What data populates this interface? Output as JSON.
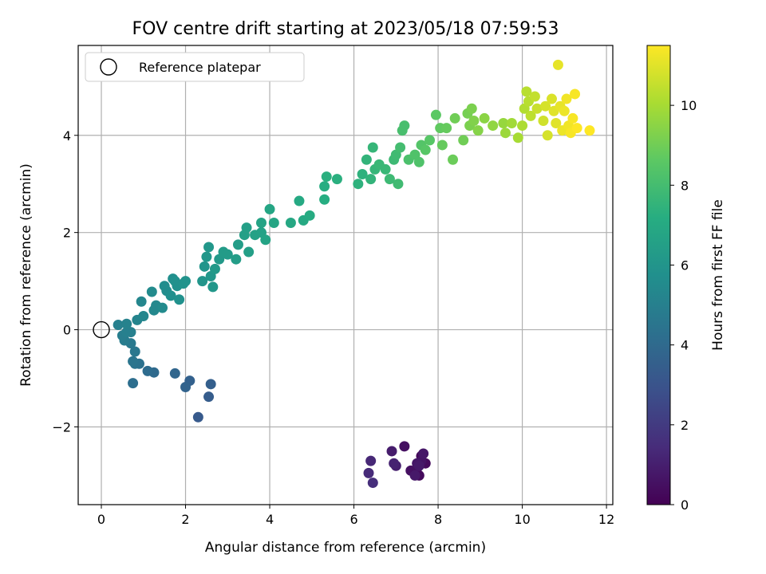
{
  "chart_data": {
    "type": "scatter",
    "title": "FOV centre drift starting at 2023/05/18 07:59:53",
    "xlabel": "Angular distance from reference (arcmin)",
    "ylabel": "Rotation from reference (arcmin)",
    "xlim": [
      -0.55,
      12.15
    ],
    "ylim": [
      -3.6,
      5.85
    ],
    "xticks": [
      0,
      2,
      4,
      6,
      8,
      10,
      12
    ],
    "yticks": [
      -2,
      0,
      2,
      4
    ],
    "grid": true,
    "legend": {
      "placement": "top-left",
      "entries": [
        "Reference platepar"
      ]
    },
    "reference_point": {
      "x": 0.0,
      "y": 0.0
    },
    "colorbar": {
      "label": "Hours from first FF file",
      "colormap": "viridis",
      "range": [
        0,
        11.5
      ],
      "ticks": [
        0,
        2,
        4,
        6,
        8,
        10
      ]
    },
    "series": [
      {
        "name": "",
        "value_field": "hours",
        "points": [
          {
            "x": 7.5,
            "y": -2.85,
            "h": 0.2
          },
          {
            "x": 7.6,
            "y": -2.6,
            "h": 0.2
          },
          {
            "x": 7.55,
            "y": -3.0,
            "h": 0.3
          },
          {
            "x": 7.7,
            "y": -2.75,
            "h": 0.3
          },
          {
            "x": 7.45,
            "y": -2.95,
            "h": 0.4
          },
          {
            "x": 7.2,
            "y": -2.4,
            "h": 0.5
          },
          {
            "x": 7.35,
            "y": -2.9,
            "h": 0.5
          },
          {
            "x": 7.6,
            "y": -2.7,
            "h": 0.6
          },
          {
            "x": 7.5,
            "y": -2.75,
            "h": 0.7
          },
          {
            "x": 7.65,
            "y": -2.55,
            "h": 0.7
          },
          {
            "x": 7.45,
            "y": -3.0,
            "h": 0.8
          },
          {
            "x": 7.55,
            "y": -2.8,
            "h": 0.8
          },
          {
            "x": 6.9,
            "y": -2.5,
            "h": 0.9
          },
          {
            "x": 7.0,
            "y": -2.8,
            "h": 1.0
          },
          {
            "x": 6.95,
            "y": -2.75,
            "h": 1.1
          },
          {
            "x": 6.4,
            "y": -2.7,
            "h": 1.3
          },
          {
            "x": 6.35,
            "y": -2.95,
            "h": 1.4
          },
          {
            "x": 6.45,
            "y": -3.15,
            "h": 1.5
          },
          {
            "x": 2.3,
            "y": -1.8,
            "h": 3.3
          },
          {
            "x": 2.6,
            "y": -1.12,
            "h": 3.5
          },
          {
            "x": 2.55,
            "y": -1.38,
            "h": 3.4
          },
          {
            "x": 2.1,
            "y": -1.05,
            "h": 3.6
          },
          {
            "x": 2.0,
            "y": -1.18,
            "h": 3.7
          },
          {
            "x": 1.75,
            "y": -0.9,
            "h": 3.8
          },
          {
            "x": 1.25,
            "y": -0.88,
            "h": 4.0
          },
          {
            "x": 1.1,
            "y": -0.85,
            "h": 4.1
          },
          {
            "x": 0.75,
            "y": -1.1,
            "h": 4.2
          },
          {
            "x": 0.9,
            "y": -0.7,
            "h": 4.3
          },
          {
            "x": 0.8,
            "y": -0.7,
            "h": 4.4
          },
          {
            "x": 0.75,
            "y": -0.65,
            "h": 4.5
          },
          {
            "x": 0.8,
            "y": -0.45,
            "h": 4.6
          },
          {
            "x": 0.7,
            "y": -0.28,
            "h": 4.7
          },
          {
            "x": 0.55,
            "y": -0.22,
            "h": 4.8
          },
          {
            "x": 0.5,
            "y": -0.12,
            "h": 4.9
          },
          {
            "x": 0.6,
            "y": -0.05,
            "h": 5.0
          },
          {
            "x": 0.7,
            "y": -0.05,
            "h": 5.0
          },
          {
            "x": 0.4,
            "y": 0.1,
            "h": 5.0
          },
          {
            "x": 0.6,
            "y": 0.12,
            "h": 5.1
          },
          {
            "x": 0.85,
            "y": 0.2,
            "h": 5.2
          },
          {
            "x": 1.0,
            "y": 0.28,
            "h": 5.3
          },
          {
            "x": 0.95,
            "y": 0.58,
            "h": 5.3
          },
          {
            "x": 1.25,
            "y": 0.4,
            "h": 5.4
          },
          {
            "x": 1.3,
            "y": 0.5,
            "h": 5.4
          },
          {
            "x": 1.2,
            "y": 0.78,
            "h": 5.5
          },
          {
            "x": 1.45,
            "y": 0.45,
            "h": 5.5
          },
          {
            "x": 1.5,
            "y": 0.9,
            "h": 5.6
          },
          {
            "x": 1.55,
            "y": 0.8,
            "h": 5.6
          },
          {
            "x": 1.65,
            "y": 0.7,
            "h": 5.7
          },
          {
            "x": 1.7,
            "y": 1.05,
            "h": 5.7
          },
          {
            "x": 1.8,
            "y": 0.9,
            "h": 5.8
          },
          {
            "x": 1.85,
            "y": 0.62,
            "h": 5.8
          },
          {
            "x": 1.95,
            "y": 0.95,
            "h": 5.9
          },
          {
            "x": 2.0,
            "y": 1.0,
            "h": 5.9
          },
          {
            "x": 1.75,
            "y": 1.0,
            "h": 5.8
          },
          {
            "x": 2.4,
            "y": 1.0,
            "h": 6.0
          },
          {
            "x": 2.45,
            "y": 1.3,
            "h": 6.0
          },
          {
            "x": 2.5,
            "y": 1.5,
            "h": 6.1
          },
          {
            "x": 2.55,
            "y": 1.7,
            "h": 6.1
          },
          {
            "x": 2.6,
            "y": 1.1,
            "h": 6.1
          },
          {
            "x": 2.65,
            "y": 0.88,
            "h": 6.1
          },
          {
            "x": 2.7,
            "y": 1.25,
            "h": 6.2
          },
          {
            "x": 2.8,
            "y": 1.45,
            "h": 6.2
          },
          {
            "x": 2.9,
            "y": 1.6,
            "h": 6.3
          },
          {
            "x": 3.0,
            "y": 1.55,
            "h": 6.3
          },
          {
            "x": 3.2,
            "y": 1.45,
            "h": 6.4
          },
          {
            "x": 3.25,
            "y": 1.75,
            "h": 6.4
          },
          {
            "x": 3.4,
            "y": 1.95,
            "h": 6.5
          },
          {
            "x": 3.45,
            "y": 2.1,
            "h": 6.5
          },
          {
            "x": 3.5,
            "y": 1.6,
            "h": 6.5
          },
          {
            "x": 3.65,
            "y": 1.95,
            "h": 6.6
          },
          {
            "x": 3.8,
            "y": 2.0,
            "h": 6.6
          },
          {
            "x": 3.9,
            "y": 1.85,
            "h": 6.7
          },
          {
            "x": 3.8,
            "y": 2.2,
            "h": 6.7
          },
          {
            "x": 4.0,
            "y": 2.48,
            "h": 6.8
          },
          {
            "x": 4.1,
            "y": 2.2,
            "h": 6.8
          },
          {
            "x": 4.5,
            "y": 2.2,
            "h": 6.9
          },
          {
            "x": 4.7,
            "y": 2.65,
            "h": 7.0
          },
          {
            "x": 4.8,
            "y": 2.25,
            "h": 7.0
          },
          {
            "x": 4.95,
            "y": 2.35,
            "h": 7.1
          },
          {
            "x": 5.3,
            "y": 2.68,
            "h": 7.2
          },
          {
            "x": 5.3,
            "y": 2.95,
            "h": 7.2
          },
          {
            "x": 5.35,
            "y": 3.15,
            "h": 7.3
          },
          {
            "x": 5.6,
            "y": 3.1,
            "h": 7.3
          },
          {
            "x": 6.1,
            "y": 3.0,
            "h": 7.4
          },
          {
            "x": 6.2,
            "y": 3.2,
            "h": 7.4
          },
          {
            "x": 6.3,
            "y": 3.5,
            "h": 7.5
          },
          {
            "x": 6.4,
            "y": 3.1,
            "h": 7.5
          },
          {
            "x": 6.45,
            "y": 3.75,
            "h": 7.6
          },
          {
            "x": 6.5,
            "y": 3.3,
            "h": 7.6
          },
          {
            "x": 6.6,
            "y": 3.4,
            "h": 7.7
          },
          {
            "x": 6.75,
            "y": 3.3,
            "h": 7.7
          },
          {
            "x": 6.85,
            "y": 3.1,
            "h": 7.8
          },
          {
            "x": 6.95,
            "y": 3.5,
            "h": 7.8
          },
          {
            "x": 7.0,
            "y": 3.6,
            "h": 7.9
          },
          {
            "x": 7.05,
            "y": 3.0,
            "h": 7.9
          },
          {
            "x": 7.1,
            "y": 3.75,
            "h": 8.0
          },
          {
            "x": 7.15,
            "y": 4.1,
            "h": 8.1
          },
          {
            "x": 7.2,
            "y": 4.2,
            "h": 8.1
          },
          {
            "x": 7.3,
            "y": 3.5,
            "h": 8.2
          },
          {
            "x": 7.45,
            "y": 3.6,
            "h": 8.3
          },
          {
            "x": 7.55,
            "y": 3.45,
            "h": 8.3
          },
          {
            "x": 7.6,
            "y": 3.8,
            "h": 8.4
          },
          {
            "x": 7.7,
            "y": 3.7,
            "h": 8.5
          },
          {
            "x": 7.8,
            "y": 3.9,
            "h": 8.5
          },
          {
            "x": 7.95,
            "y": 4.42,
            "h": 8.6
          },
          {
            "x": 8.05,
            "y": 4.15,
            "h": 8.7
          },
          {
            "x": 8.2,
            "y": 4.15,
            "h": 8.8
          },
          {
            "x": 8.1,
            "y": 3.8,
            "h": 8.8
          },
          {
            "x": 8.35,
            "y": 3.5,
            "h": 8.9
          },
          {
            "x": 8.4,
            "y": 4.35,
            "h": 9.0
          },
          {
            "x": 8.6,
            "y": 3.9,
            "h": 9.0
          },
          {
            "x": 8.7,
            "y": 4.45,
            "h": 9.1
          },
          {
            "x": 8.75,
            "y": 4.2,
            "h": 9.2
          },
          {
            "x": 8.8,
            "y": 4.55,
            "h": 9.2
          },
          {
            "x": 8.85,
            "y": 4.3,
            "h": 9.3
          },
          {
            "x": 8.95,
            "y": 4.1,
            "h": 9.4
          },
          {
            "x": 9.1,
            "y": 4.35,
            "h": 9.5
          },
          {
            "x": 9.3,
            "y": 4.2,
            "h": 9.6
          },
          {
            "x": 9.55,
            "y": 4.25,
            "h": 9.7
          },
          {
            "x": 9.6,
            "y": 4.05,
            "h": 9.8
          },
          {
            "x": 9.75,
            "y": 4.25,
            "h": 9.9
          },
          {
            "x": 9.9,
            "y": 3.95,
            "h": 10.0
          },
          {
            "x": 10.0,
            "y": 4.2,
            "h": 10.1
          },
          {
            "x": 10.05,
            "y": 4.55,
            "h": 10.2
          },
          {
            "x": 10.1,
            "y": 4.9,
            "h": 10.3
          },
          {
            "x": 10.15,
            "y": 4.7,
            "h": 10.3
          },
          {
            "x": 10.2,
            "y": 4.4,
            "h": 10.4
          },
          {
            "x": 10.3,
            "y": 4.8,
            "h": 10.5
          },
          {
            "x": 10.35,
            "y": 4.55,
            "h": 10.6
          },
          {
            "x": 10.5,
            "y": 4.3,
            "h": 10.7
          },
          {
            "x": 10.55,
            "y": 4.6,
            "h": 10.8
          },
          {
            "x": 10.6,
            "y": 4.0,
            "h": 10.8
          },
          {
            "x": 10.7,
            "y": 4.75,
            "h": 10.9
          },
          {
            "x": 10.75,
            "y": 4.5,
            "h": 11.0
          },
          {
            "x": 10.8,
            "y": 4.25,
            "h": 11.0
          },
          {
            "x": 10.85,
            "y": 5.45,
            "h": 11.1
          },
          {
            "x": 10.9,
            "y": 4.6,
            "h": 11.1
          },
          {
            "x": 10.95,
            "y": 4.1,
            "h": 11.2
          },
          {
            "x": 11.0,
            "y": 4.5,
            "h": 11.2
          },
          {
            "x": 11.05,
            "y": 4.75,
            "h": 11.3
          },
          {
            "x": 11.1,
            "y": 4.2,
            "h": 11.3
          },
          {
            "x": 11.15,
            "y": 4.05,
            "h": 11.4
          },
          {
            "x": 11.2,
            "y": 4.35,
            "h": 11.4
          },
          {
            "x": 11.25,
            "y": 4.85,
            "h": 11.4
          },
          {
            "x": 11.3,
            "y": 4.15,
            "h": 11.5
          },
          {
            "x": 11.6,
            "y": 4.1,
            "h": 11.5
          }
        ]
      }
    ]
  }
}
